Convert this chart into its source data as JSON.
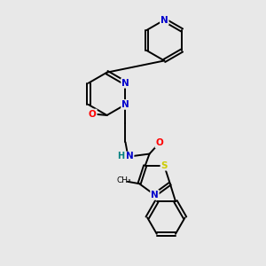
{
  "bg_color": "#e8e8e8",
  "bond_color": "#000000",
  "atom_colors": {
    "N": "#0000cc",
    "O": "#ff0000",
    "S": "#cccc00",
    "H": "#008080",
    "C": "#000000"
  },
  "figsize": [
    3.0,
    3.0
  ],
  "dpi": 100
}
